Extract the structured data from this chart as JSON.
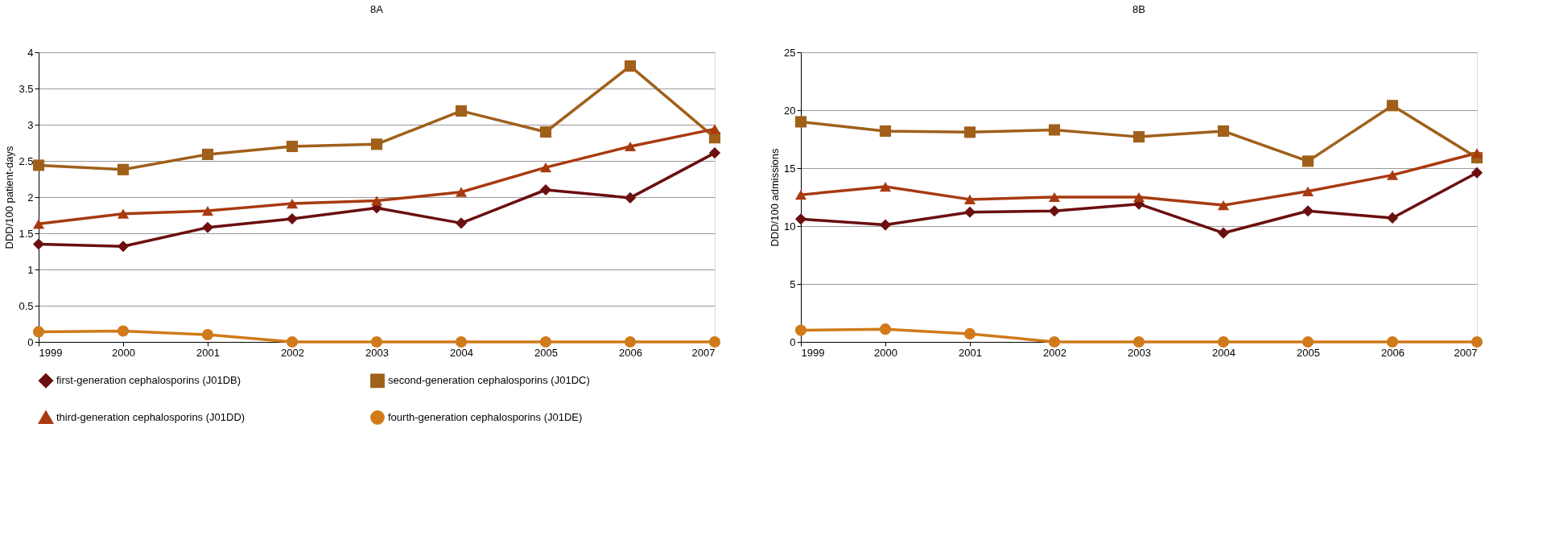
{
  "chart_data": [
    {
      "type": "line",
      "title": "8A",
      "ylabel": "DDD/100 patient-days",
      "categories": [
        "1999",
        "2000",
        "2001",
        "2002",
        "2003",
        "2004",
        "2005",
        "2006",
        "2007"
      ],
      "ylim": [
        0,
        4
      ],
      "yticks": [
        0,
        0.5,
        1,
        1.5,
        2,
        2.5,
        3,
        3.5,
        4
      ],
      "grid": "y",
      "legend": "bottom",
      "series": [
        {
          "name": "first-generation cephalosporins (J01DB)",
          "color": "#6b0f0f",
          "marker": "diamond",
          "values": [
            1.35,
            1.32,
            1.58,
            1.7,
            1.85,
            1.64,
            2.1,
            1.99,
            2.61
          ]
        },
        {
          "name": "second-generation cephalosporins (J01DC)",
          "color": "#a0601a",
          "marker": "square",
          "values": [
            2.44,
            2.38,
            2.59,
            2.7,
            2.73,
            3.19,
            2.9,
            3.81,
            2.82
          ]
        },
        {
          "name": "third-generation cephalosporins (J01DD)",
          "color": "#a83a10",
          "marker": "triangle",
          "values": [
            1.63,
            1.77,
            1.81,
            1.91,
            1.95,
            2.07,
            2.41,
            2.7,
            2.94
          ]
        },
        {
          "name": "fourth-generation cephalosporins (J01DE)",
          "color": "#d07a1a",
          "marker": "circle",
          "values": [
            0.14,
            0.15,
            0.1,
            0,
            0,
            0,
            0,
            0,
            0
          ]
        }
      ]
    },
    {
      "type": "line",
      "title": "8B",
      "ylabel": "DDD/100 admissions",
      "categories": [
        "1999",
        "2000",
        "2001",
        "2002",
        "2003",
        "2004",
        "2005",
        "2006",
        "2007"
      ],
      "ylim": [
        0,
        25
      ],
      "yticks": [
        0,
        5,
        10,
        15,
        20,
        25
      ],
      "grid": "y",
      "legend": "bottom",
      "series": [
        {
          "name": "first-generation cephalosporins (J01DB)",
          "color": "#6b0f0f",
          "marker": "diamond",
          "values": [
            10.6,
            10.1,
            11.2,
            11.3,
            11.9,
            9.4,
            11.3,
            10.7,
            14.6
          ]
        },
        {
          "name": "second-generation cephalosporins (J01DC)",
          "color": "#a0601a",
          "marker": "square",
          "values": [
            19.0,
            18.2,
            18.1,
            18.3,
            17.7,
            18.2,
            15.6,
            20.4,
            15.9
          ]
        },
        {
          "name": "third-generation cephalosporins (J01DD)",
          "color": "#a83a10",
          "marker": "triangle",
          "values": [
            12.7,
            13.4,
            12.3,
            12.5,
            12.5,
            11.8,
            13.0,
            14.4,
            16.3
          ]
        },
        {
          "name": "fourth-generation cephalosporins (J01DE)",
          "color": "#d07a1a",
          "marker": "circle",
          "values": [
            1.0,
            1.1,
            0.7,
            0,
            0,
            0,
            0,
            0,
            0
          ]
        }
      ]
    }
  ]
}
